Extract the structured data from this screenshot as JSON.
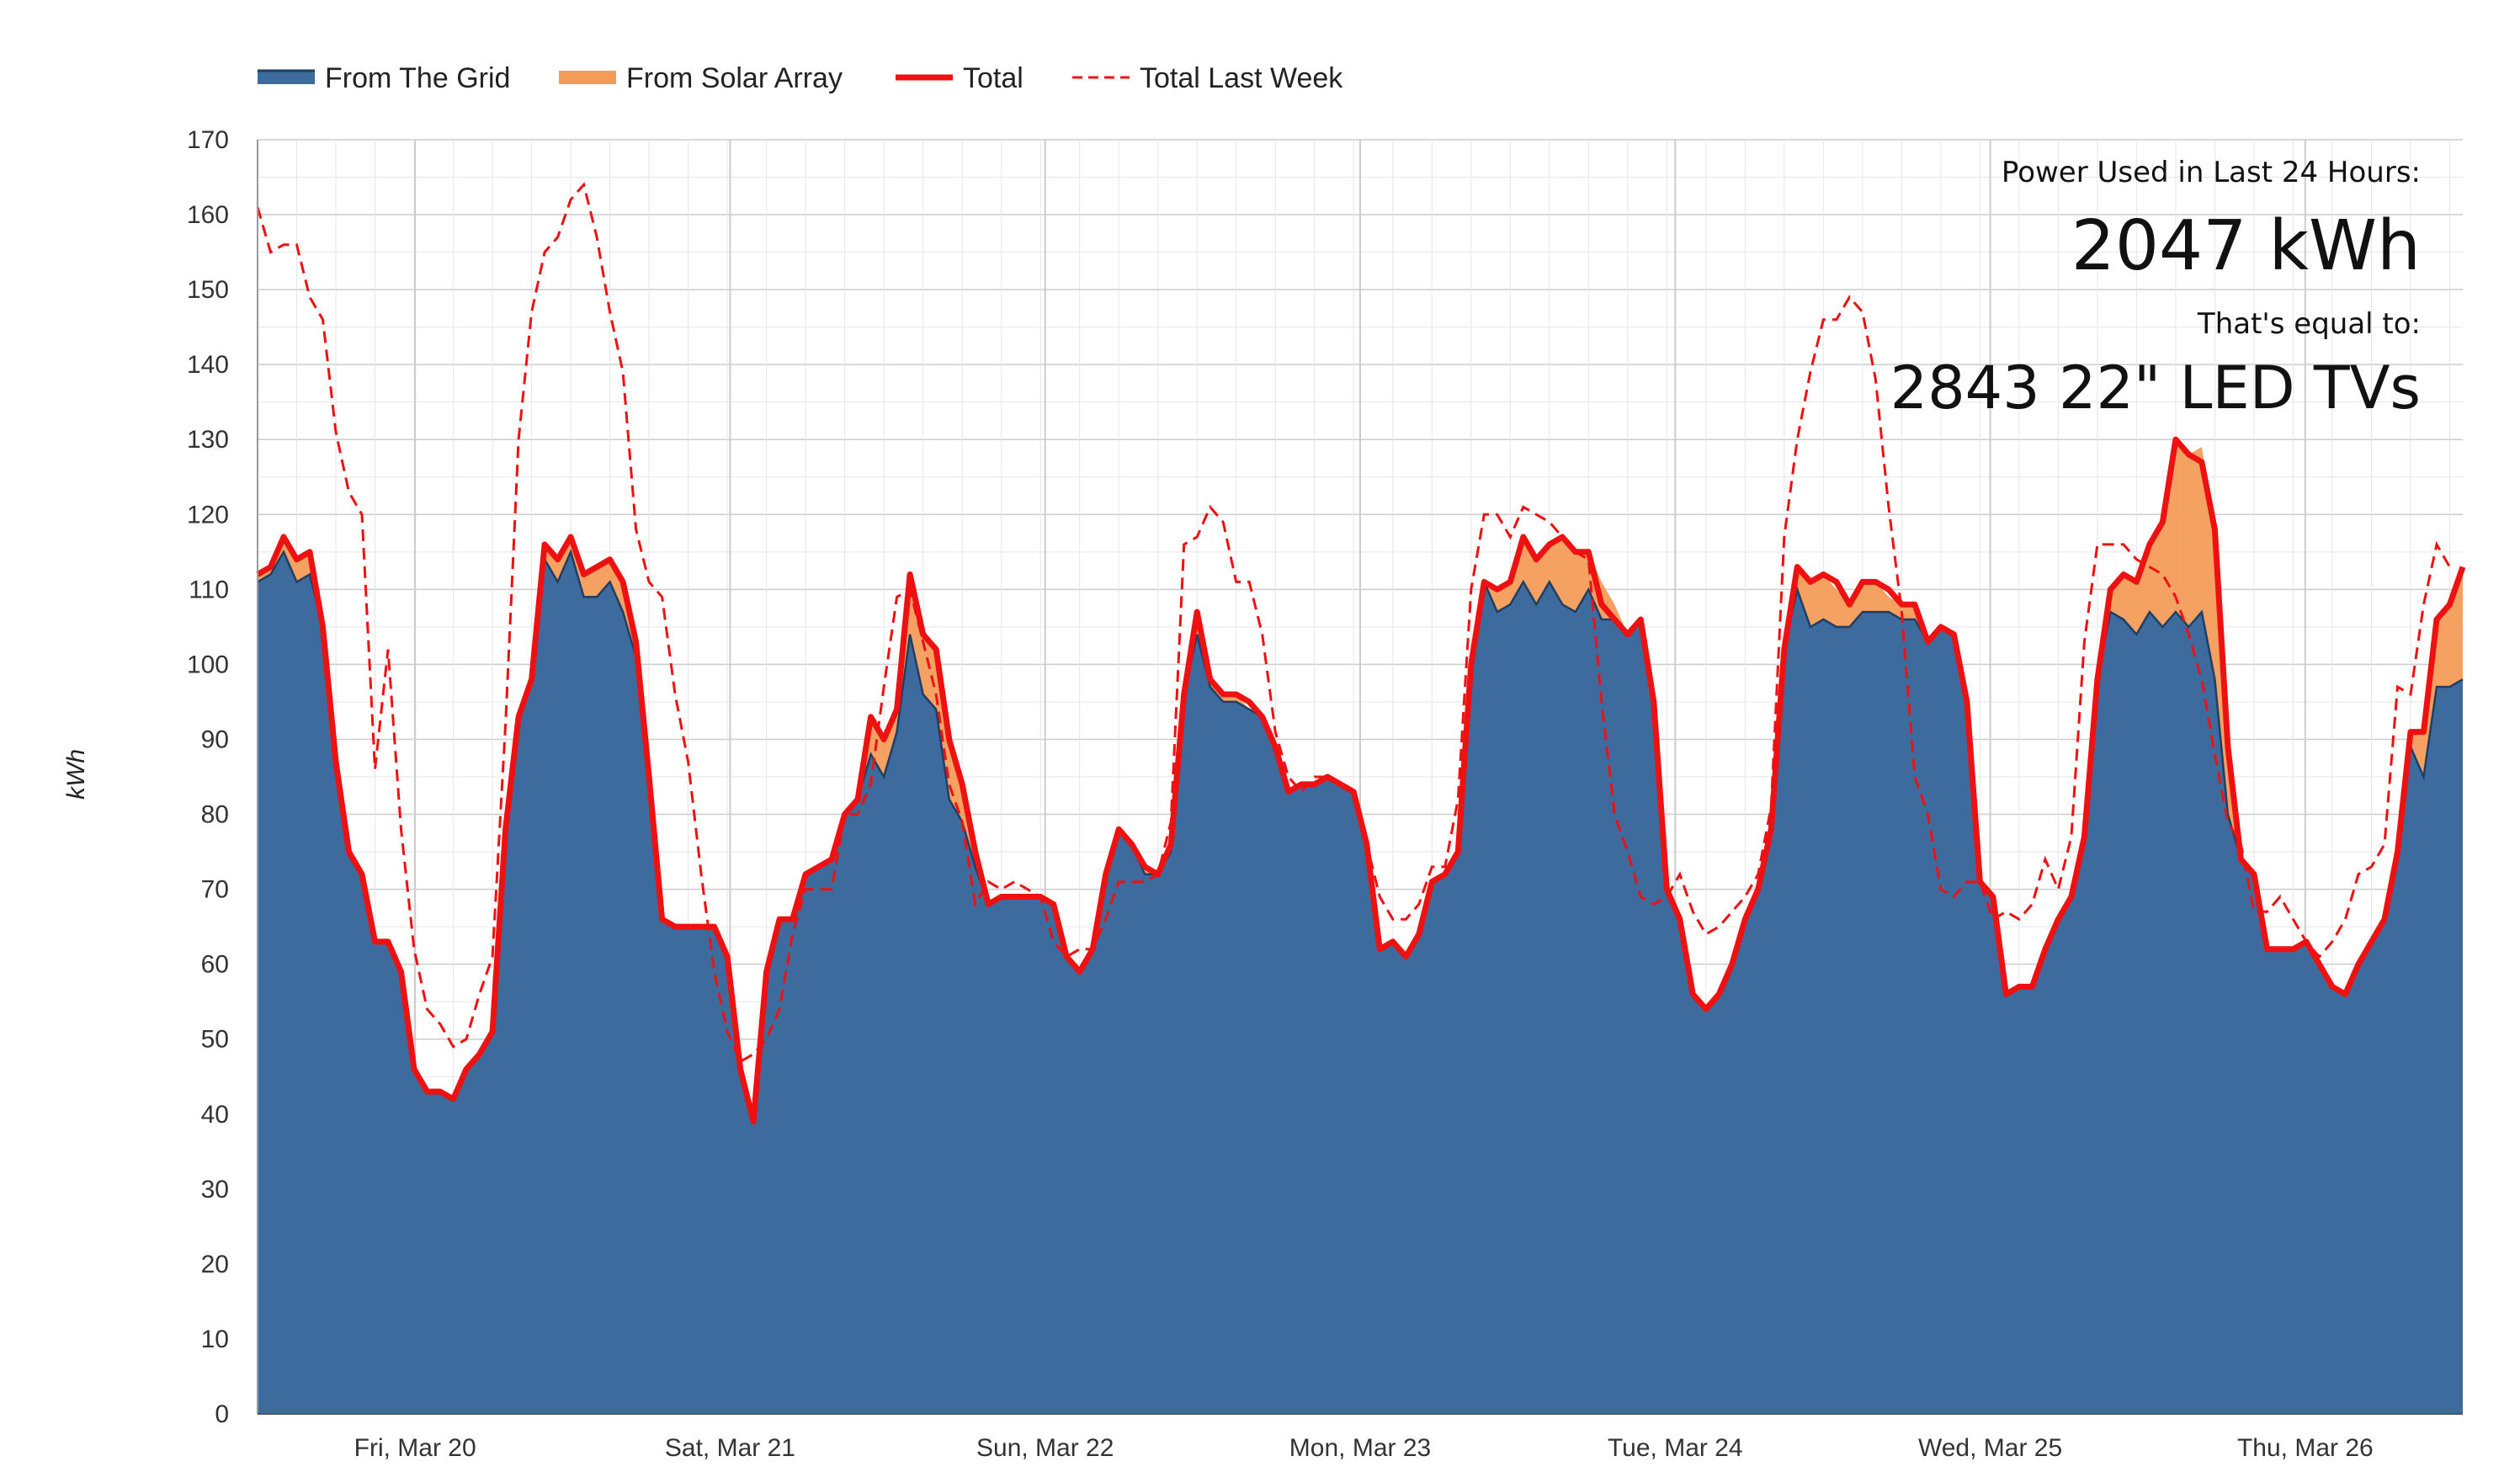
{
  "chart_data": {
    "type": "area",
    "title": "",
    "xlabel": "",
    "ylabel": "kWh",
    "ylim": [
      0,
      170
    ],
    "yticks": [
      0,
      10,
      20,
      30,
      40,
      50,
      60,
      70,
      80,
      90,
      100,
      110,
      120,
      130,
      140,
      150,
      160,
      170
    ],
    "grid": true,
    "legend_position": "top-left",
    "x_start_label_offset": 0,
    "day_labels": [
      "Fri, Mar 20",
      "Sat, Mar 21",
      "Sun, Mar 22",
      "Mon, Mar 23",
      "Tue, Mar 24",
      "Wed, Mar 25",
      "Thu, Mar 26"
    ],
    "series": [
      {
        "name": "From The Grid",
        "style": "stacked-area",
        "color": "#3d6b9e",
        "edge": "#1f3e63",
        "values": [
          111,
          112,
          115,
          111,
          112,
          105,
          87,
          75,
          72,
          63,
          63,
          59,
          46,
          43,
          43,
          42,
          46,
          48,
          51,
          78,
          93,
          98,
          114,
          111,
          115,
          109,
          109,
          111,
          107,
          101,
          85,
          66,
          65,
          65,
          65,
          65,
          61,
          46,
          39,
          59,
          66,
          66,
          72,
          73,
          74,
          80,
          82,
          88,
          85,
          91,
          104,
          96,
          94,
          82,
          79,
          73,
          68,
          69,
          69,
          69,
          69,
          68,
          61,
          59,
          62,
          72,
          78,
          76,
          72,
          72,
          75,
          96,
          104,
          97,
          95,
          95,
          94,
          93,
          89,
          83,
          84,
          84,
          85,
          84,
          83,
          76,
          62,
          63,
          61,
          64,
          71,
          72,
          75,
          100,
          111,
          107,
          108,
          111,
          108,
          111,
          108,
          107,
          110,
          106,
          106,
          104,
          106,
          95,
          70,
          66,
          56,
          54,
          56,
          60,
          66,
          70,
          78,
          102,
          110,
          105,
          106,
          105,
          105,
          107,
          107,
          107,
          106,
          106,
          103,
          105,
          104,
          95,
          71,
          69,
          56,
          57,
          57,
          62,
          66,
          69,
          77,
          98,
          107,
          106,
          104,
          107,
          105,
          107,
          105,
          107,
          98,
          80,
          74,
          72,
          62,
          62,
          62,
          63,
          60,
          57,
          56,
          60,
          63,
          66,
          75,
          89,
          85,
          97,
          97,
          98
        ]
      },
      {
        "name": "From Solar Array",
        "style": "stacked-area",
        "color": "#f39c5a",
        "values": [
          1,
          1,
          2,
          3,
          3,
          0,
          0,
          0,
          0,
          0,
          0,
          0,
          0,
          0,
          0,
          0,
          0,
          0,
          0,
          0,
          0,
          0,
          2,
          3,
          2,
          3,
          4,
          3,
          4,
          2,
          0,
          0,
          0,
          0,
          0,
          0,
          0,
          0,
          0,
          0,
          0,
          0,
          0,
          0,
          0,
          0,
          0,
          5,
          5,
          3,
          8,
          8,
          8,
          8,
          5,
          2,
          0,
          0,
          0,
          0,
          0,
          0,
          0,
          0,
          0,
          0,
          0,
          0,
          1,
          0,
          1,
          0,
          3,
          1,
          1,
          1,
          0,
          0,
          0,
          0,
          0,
          0,
          0,
          0,
          0,
          0,
          0,
          0,
          0,
          0,
          0,
          0,
          0,
          0,
          0,
          3,
          3,
          6,
          6,
          5,
          9,
          8,
          5,
          5,
          2,
          0,
          0,
          0,
          0,
          0,
          0,
          0,
          0,
          0,
          0,
          0,
          0,
          0,
          3,
          6,
          6,
          5,
          3,
          4,
          4,
          2,
          2,
          2,
          0,
          0,
          0,
          0,
          0,
          0,
          0,
          0,
          0,
          0,
          0,
          0,
          0,
          0,
          3,
          6,
          7,
          9,
          14,
          23,
          23,
          22,
          20,
          9,
          0,
          0,
          0,
          0,
          0,
          0,
          0,
          0,
          0,
          0,
          0,
          0,
          0,
          2,
          6,
          9,
          11,
          15
        ]
      },
      {
        "name": "Total",
        "style": "line",
        "color": "#ee1111",
        "values": [
          112,
          113,
          117,
          114,
          115,
          105,
          87,
          75,
          72,
          63,
          63,
          59,
          46,
          43,
          43,
          42,
          46,
          48,
          51,
          78,
          93,
          98,
          116,
          114,
          117,
          112,
          113,
          114,
          111,
          103,
          85,
          66,
          65,
          65,
          65,
          65,
          61,
          46,
          39,
          59,
          66,
          66,
          72,
          73,
          74,
          80,
          82,
          93,
          90,
          94,
          112,
          104,
          102,
          90,
          84,
          75,
          68,
          69,
          69,
          69,
          69,
          68,
          61,
          59,
          62,
          72,
          78,
          76,
          73,
          72,
          76,
          96,
          107,
          98,
          96,
          96,
          95,
          93,
          89,
          83,
          84,
          84,
          85,
          84,
          83,
          76,
          62,
          63,
          61,
          64,
          71,
          72,
          75,
          100,
          111,
          110,
          111,
          117,
          114,
          116,
          117,
          115,
          115,
          108,
          106,
          104,
          106,
          95,
          70,
          66,
          56,
          54,
          56,
          60,
          66,
          70,
          78,
          102,
          113,
          111,
          112,
          111,
          108,
          111,
          111,
          110,
          108,
          108,
          103,
          105,
          104,
          95,
          71,
          69,
          56,
          57,
          57,
          62,
          66,
          69,
          77,
          98,
          110,
          112,
          111,
          116,
          119,
          130,
          128,
          127,
          118,
          89,
          74,
          72,
          62,
          62,
          62,
          63,
          60,
          57,
          56,
          60,
          63,
          66,
          75,
          91,
          91,
          106,
          108,
          113
        ]
      },
      {
        "name": "Total Last Week",
        "style": "dashed-line",
        "color": "#ee1111",
        "values": [
          161,
          155,
          156,
          156,
          149,
          146,
          131,
          123,
          120,
          86,
          102,
          78,
          62,
          54,
          52,
          49,
          50,
          56,
          61,
          92,
          130,
          147,
          155,
          157,
          162,
          164,
          157,
          147,
          139,
          118,
          111,
          109,
          96,
          87,
          72,
          59,
          51,
          47,
          48,
          50,
          54,
          64,
          70,
          70,
          70,
          80,
          80,
          84,
          97,
          109,
          110,
          103,
          96,
          84,
          79,
          68,
          71,
          70,
          71,
          70,
          69,
          63,
          61,
          62,
          62,
          66,
          71,
          71,
          71,
          72,
          79,
          116,
          117,
          121,
          119,
          111,
          111,
          104,
          91,
          85,
          83,
          85,
          85,
          84,
          83,
          76,
          69,
          66,
          66,
          68,
          73,
          73,
          82,
          110,
          120,
          120,
          117,
          121,
          120,
          119,
          117,
          115,
          114,
          95,
          80,
          75,
          69,
          68,
          69,
          72,
          67,
          64,
          65,
          67,
          69,
          72,
          81,
          117,
          130,
          139,
          146,
          146,
          149,
          147,
          138,
          121,
          107,
          85,
          80,
          70,
          69,
          71,
          71,
          66,
          67,
          66,
          68,
          74,
          70,
          77,
          103,
          116,
          116,
          116,
          114,
          113,
          112,
          109,
          104,
          98,
          88,
          79,
          76,
          67,
          67,
          69,
          66,
          63,
          61,
          63,
          66,
          72,
          73,
          76,
          97,
          96,
          108,
          116,
          113
        ]
      }
    ]
  },
  "legend": {
    "items": [
      {
        "label": "From The Grid"
      },
      {
        "label": "From Solar Array"
      },
      {
        "label": "Total"
      },
      {
        "label": "Total Last Week"
      }
    ]
  },
  "stats": {
    "heading": "Power Used in Last 24 Hours:",
    "value": "2047 kWh",
    "equal_label": "That's equal to:",
    "equivalent": "2843 22\" LED TVs"
  },
  "colors": {
    "grid_blue": "#3d6b9e",
    "grid_edge": "#1f3e63",
    "solar": "#f39c5a",
    "total": "#ee1111",
    "gridline": "#e6e6e6",
    "gridline_major": "#cccccc"
  }
}
